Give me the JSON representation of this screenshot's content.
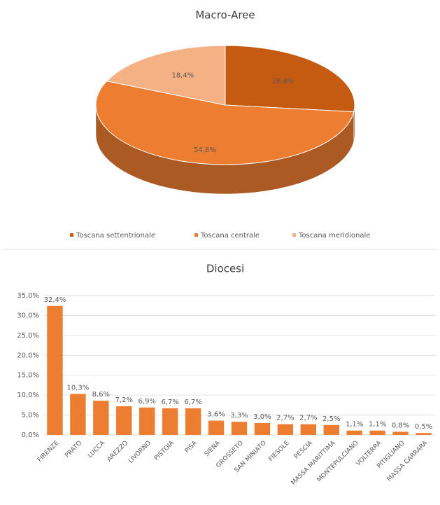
{
  "chart_data": [
    {
      "type": "pie",
      "title": "Macro-Aree",
      "categories": [
        "Toscana settentrionale",
        "Toscana centrale",
        "Toscana meridionale"
      ],
      "values": [
        26.8,
        54.8,
        18.4
      ],
      "value_labels": [
        "26,8%",
        "54,8%",
        "18,4%"
      ],
      "colors": [
        "#c55a11",
        "#ed7d31",
        "#f4b183"
      ],
      "legend": "bottom"
    },
    {
      "type": "bar",
      "title": "Diocesi",
      "categories": [
        "FIRENZE",
        "PRATO",
        "LUCCA",
        "AREZZO",
        "LIVORNO",
        "PISTOIA",
        "PISA",
        "SIENA",
        "GROSSETO",
        "SAN MINIATO",
        "FIESOLE",
        "PESCIA",
        "MASSA MARITTIMA",
        "MONTEPULCIANO",
        "VOLTERRA",
        "PITIGLIANO",
        "MASSA CARRARA"
      ],
      "values": [
        32.4,
        10.3,
        8.6,
        7.2,
        6.9,
        6.7,
        6.7,
        3.6,
        3.3,
        3.0,
        2.7,
        2.7,
        2.5,
        1.1,
        1.1,
        0.8,
        0.5
      ],
      "value_labels": [
        "32,4%",
        "10,3%",
        "8,6%",
        "7,2%",
        "6,9%",
        "6,7%",
        "6,7%",
        "3,6%",
        "3,3%",
        "3,0%",
        "2,7%",
        "2,7%",
        "2,5%",
        "1,1%",
        "1,1%",
        "0,8%",
        "0,5%"
      ],
      "color": "#ed7d31",
      "ylim": [
        0,
        35
      ],
      "yticks": [
        {
          "value": 0,
          "label": "0,0%"
        },
        {
          "value": 5,
          "label": "5,0%"
        },
        {
          "value": 10,
          "label": "10,0%"
        },
        {
          "value": 15,
          "label": "15,0%"
        },
        {
          "value": 20,
          "label": "20,0%"
        },
        {
          "value": 25,
          "label": "25,0%"
        },
        {
          "value": 30,
          "label": "30,0%"
        },
        {
          "value": 35,
          "label": "35,0%"
        }
      ],
      "grid": true
    }
  ]
}
